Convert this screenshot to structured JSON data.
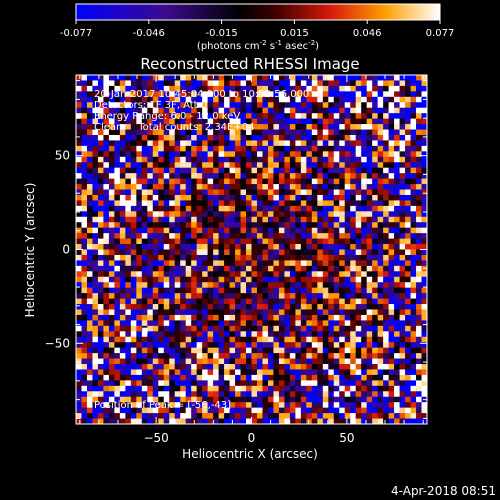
{
  "chart_data": {
    "type": "heatmap",
    "title": "Reconstructed RHESSI Image",
    "xlabel": "Heliocentric X (arcsec)",
    "ylabel": "Heliocentric Y (arcsec)",
    "x_ticks": [
      -50,
      0,
      50
    ],
    "y_ticks": [
      -50,
      0,
      50
    ],
    "xlim": [
      -92,
      92
    ],
    "ylim": [
      -93,
      93
    ],
    "colorbar": {
      "min": -0.077,
      "max": 0.077,
      "tick_labels": [
        "-0.077",
        "-0.046",
        "-0.015",
        "0.015",
        "0.046",
        "0.077"
      ],
      "unit_base": "(photons cm",
      "unit_exp1": "-2",
      "unit_mid1": " s",
      "unit_exp2": "-1",
      "unit_mid2": " asec",
      "unit_exp3": "-2",
      "unit_close": ")"
    },
    "annotations": [
      "20-Jan-2017 10:45:04.000 to 10:52:56.000",
      "Detectors: 1F 3F, Att 0",
      "Energy Range: 6.0 - 12.0 keV",
      "Clean     Total counts: 2.34E+04"
    ],
    "peak_label": "Position of Peak = [-56,-43]",
    "peak_position": [
      -56,
      -43
    ],
    "grid": false
  },
  "footer": {
    "date": "4-Apr-2018 08:51"
  }
}
